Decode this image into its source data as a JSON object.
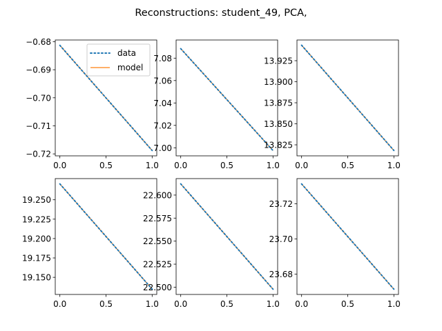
{
  "figure": {
    "suptitle": "Reconstructions: student_49, PCA,",
    "colors": {
      "data": "#1f77b4",
      "model": "#ff7f0e",
      "axis": "#000000"
    }
  },
  "legend": {
    "placement": "upper-right of first subplot",
    "entries": [
      "data",
      "model"
    ]
  },
  "chart_data": [
    {
      "type": "line",
      "x": [
        0,
        1
      ],
      "xlim": [
        -0.05,
        1.05
      ],
      "xticks": [
        "0.0",
        "0.5",
        "1.0"
      ],
      "ylim": [
        -0.7207,
        -0.6794
      ],
      "yticks": [
        "-0.68",
        "-0.69",
        "-0.70",
        "-0.71",
        "-0.72"
      ],
      "ytick_values": [
        -0.68,
        -0.69,
        -0.7,
        -0.71,
        -0.72
      ],
      "series": [
        {
          "name": "data",
          "style": "dotted",
          "values": [
            -0.6813,
            -0.7188
          ]
        },
        {
          "name": "model",
          "style": "solid",
          "values": [
            -0.6813,
            -0.7188
          ]
        }
      ]
    },
    {
      "type": "line",
      "x": [
        0,
        1
      ],
      "xlim": [
        -0.05,
        1.05
      ],
      "xticks": [
        "0.0",
        "0.5",
        "1.0"
      ],
      "ylim": [
        6.9928,
        7.0962
      ],
      "yticks": [
        "7.08",
        "7.06",
        "7.04",
        "7.02",
        "7.00"
      ],
      "ytick_values": [
        7.08,
        7.06,
        7.04,
        7.02,
        7.0
      ],
      "series": [
        {
          "style": "dotted",
          "values": [
            7.0885,
            6.9975
          ]
        },
        {
          "style": "solid",
          "values": [
            7.0885,
            6.9975
          ]
        }
      ]
    },
    {
      "type": "line",
      "x": [
        0,
        1
      ],
      "xlim": [
        -0.05,
        1.05
      ],
      "xticks": [
        "0.0",
        "0.5",
        "1.0"
      ],
      "ylim": [
        13.8119,
        13.9496
      ],
      "yticks": [
        "13.925",
        "13.900",
        "13.875",
        "13.850",
        "13.825"
      ],
      "ytick_values": [
        13.925,
        13.9,
        13.875,
        13.85,
        13.825
      ],
      "series": [
        {
          "style": "dotted",
          "values": [
            13.9434,
            13.8183
          ]
        },
        {
          "style": "solid",
          "values": [
            13.9434,
            13.8183
          ]
        }
      ]
    },
    {
      "type": "line",
      "x": [
        0,
        1
      ],
      "xlim": [
        -0.05,
        1.05
      ],
      "xticks": [
        "0.0",
        "0.5",
        "1.0"
      ],
      "ylim": [
        19.1279,
        19.2773
      ],
      "yticks": [
        "19.250",
        "19.225",
        "19.200",
        "19.175",
        "19.150"
      ],
      "ytick_values": [
        19.25,
        19.225,
        19.2,
        19.175,
        19.15
      ],
      "series": [
        {
          "style": "dotted",
          "values": [
            19.2705,
            19.1347
          ]
        },
        {
          "style": "solid",
          "values": [
            19.2705,
            19.1347
          ]
        }
      ]
    },
    {
      "type": "line",
      "x": [
        0,
        1
      ],
      "xlim": [
        -0.05,
        1.05
      ],
      "xticks": [
        "0.0",
        "0.5",
        "1.0"
      ],
      "ylim": [
        22.4921,
        22.6179
      ],
      "yticks": [
        "22.600",
        "22.575",
        "22.550",
        "22.525",
        "22.500"
      ],
      "ytick_values": [
        22.6,
        22.575,
        22.55,
        22.525,
        22.5
      ],
      "series": [
        {
          "style": "dotted",
          "values": [
            22.6122,
            22.4978
          ]
        },
        {
          "style": "solid",
          "values": [
            22.6122,
            22.4978
          ]
        }
      ]
    },
    {
      "type": "line",
      "x": [
        0,
        1
      ],
      "xlim": [
        -0.05,
        1.05
      ],
      "xticks": [
        "0.0",
        "0.5",
        "1.0"
      ],
      "ylim": [
        23.6685,
        23.7343
      ],
      "yticks": [
        "23.72",
        "23.70",
        "23.68"
      ],
      "ytick_values": [
        23.72,
        23.7,
        23.68
      ],
      "series": [
        {
          "style": "dotted",
          "values": [
            23.7313,
            23.6715
          ]
        },
        {
          "style": "solid",
          "values": [
            23.7313,
            23.6715
          ]
        }
      ]
    }
  ]
}
